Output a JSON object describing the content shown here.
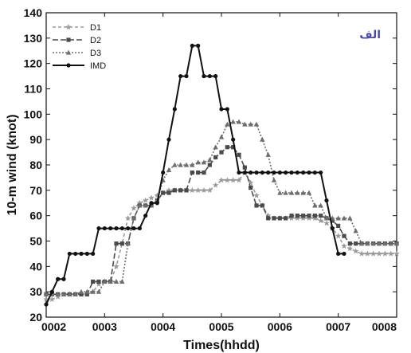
{
  "chart_data": {
    "type": "line",
    "title": "",
    "xlabel": "Times(hhdd)",
    "ylabel": "10-m wind (knot)",
    "panel_label": "الف",
    "xlim": [
      0,
      60
    ],
    "ylim": [
      20,
      140
    ],
    "x_ticks": [
      {
        "pos": 0,
        "label": "0002"
      },
      {
        "pos": 10,
        "label": "0003"
      },
      {
        "pos": 20,
        "label": "0004"
      },
      {
        "pos": 30,
        "label": "0005"
      },
      {
        "pos": 40,
        "label": "0006"
      },
      {
        "pos": 50,
        "label": "0007"
      },
      {
        "pos": 60,
        "label": "0008"
      }
    ],
    "y_ticks": [
      20,
      30,
      40,
      50,
      60,
      70,
      80,
      90,
      100,
      110,
      120,
      130,
      140
    ],
    "grid": false,
    "legend_position": "top-left",
    "series": [
      {
        "name": "D1",
        "color": "#9a9a9a",
        "dash": "4,3",
        "marker": "star",
        "x": [
          0,
          1,
          2,
          3,
          4,
          5,
          6,
          7,
          8,
          9,
          10,
          11,
          12,
          13,
          14,
          15,
          16,
          17,
          18,
          19,
          20,
          21,
          22,
          23,
          24,
          25,
          26,
          27,
          28,
          29,
          30,
          31,
          32,
          33,
          34,
          35,
          36,
          37,
          38,
          39,
          40,
          41,
          42,
          43,
          44,
          45,
          46,
          47,
          48,
          49,
          50,
          51,
          52,
          53,
          54,
          55,
          56,
          57,
          58,
          59,
          60
        ],
        "values": [
          27,
          27,
          28,
          29,
          29,
          29,
          29,
          29,
          30,
          33,
          34,
          34,
          40,
          49,
          59,
          63,
          65,
          66,
          67,
          68,
          69,
          70,
          70,
          70,
          70,
          70,
          70,
          70,
          70,
          72,
          74,
          74,
          74,
          74,
          77,
          73,
          68,
          64,
          60,
          59,
          59,
          59,
          59,
          59,
          59,
          59,
          59,
          58,
          57,
          55,
          52,
          48,
          47,
          46,
          45,
          45,
          45,
          45,
          45,
          45,
          45
        ]
      },
      {
        "name": "D2",
        "color": "#4a4a4a",
        "dash": "7,3",
        "marker": "square",
        "x": [
          0,
          1,
          2,
          3,
          4,
          5,
          6,
          7,
          8,
          9,
          10,
          11,
          12,
          13,
          14,
          15,
          16,
          17,
          18,
          19,
          20,
          21,
          22,
          23,
          24,
          25,
          26,
          27,
          28,
          29,
          30,
          31,
          32,
          33,
          34,
          35,
          36,
          37,
          38,
          39,
          40,
          41,
          42,
          43,
          44,
          45,
          46,
          47,
          48,
          49,
          50,
          51,
          52,
          53,
          54,
          55,
          56,
          57,
          58,
          59,
          60
        ],
        "values": [
          29,
          29,
          29,
          29,
          29,
          29,
          29,
          29,
          34,
          34,
          34,
          34,
          49,
          49,
          49,
          59,
          64,
          64,
          64,
          66,
          69,
          69,
          70,
          70,
          70,
          77,
          77,
          77,
          80,
          83,
          85,
          87,
          87,
          84,
          79,
          71,
          64,
          64,
          59,
          59,
          59,
          59,
          60,
          60,
          60,
          60,
          60,
          60,
          59,
          58,
          56,
          52,
          49,
          49,
          49,
          49,
          49,
          49,
          49,
          49,
          49
        ]
      },
      {
        "name": "D3",
        "color": "#6e6e6e",
        "dash": "2,2",
        "marker": "triangle",
        "x": [
          0,
          1,
          2,
          3,
          4,
          5,
          6,
          7,
          8,
          9,
          10,
          11,
          12,
          13,
          14,
          15,
          16,
          17,
          18,
          19,
          20,
          21,
          22,
          23,
          24,
          25,
          26,
          27,
          28,
          29,
          30,
          31,
          32,
          33,
          34,
          35,
          36,
          37,
          38,
          39,
          40,
          41,
          42,
          43,
          44,
          45,
          46,
          47,
          48,
          49,
          50,
          51,
          52,
          53,
          54,
          55,
          56,
          57,
          58,
          59,
          60
        ],
        "values": [
          29,
          29,
          29,
          29,
          29,
          29,
          30,
          30,
          30,
          30,
          34,
          34,
          34,
          34,
          49,
          59,
          64,
          64,
          64,
          66,
          74,
          78,
          80,
          80,
          80,
          80,
          81,
          81,
          82,
          87,
          91,
          96,
          97,
          97,
          96,
          96,
          96,
          90,
          84,
          74,
          69,
          69,
          69,
          69,
          69,
          69,
          64,
          64,
          59,
          59,
          59,
          59,
          59,
          54,
          49,
          49,
          49,
          49,
          49,
          49,
          49
        ]
      },
      {
        "name": "IMD",
        "color": "#111111",
        "dash": "",
        "marker": "circle",
        "x": [
          0,
          1,
          2,
          3,
          4,
          5,
          6,
          7,
          8,
          9,
          10,
          11,
          12,
          13,
          14,
          15,
          16,
          17,
          18,
          19,
          20,
          21,
          22,
          23,
          24,
          25,
          26,
          27,
          28,
          29,
          30,
          31,
          32,
          33,
          34,
          35,
          36,
          37,
          38,
          39,
          40,
          41,
          42,
          43,
          44,
          45,
          46,
          47,
          48,
          49,
          50,
          51
        ],
        "values": [
          25,
          30,
          35,
          35,
          45,
          45,
          45,
          45,
          45,
          55,
          55,
          55,
          55,
          55,
          55,
          55,
          55,
          60,
          65,
          65,
          77,
          90,
          102,
          115,
          115,
          127,
          127,
          115,
          115,
          115,
          102,
          102,
          90,
          77,
          77,
          77,
          77,
          77,
          77,
          77,
          77,
          77,
          77,
          77,
          77,
          77,
          77,
          77,
          66,
          55,
          45,
          45
        ]
      }
    ]
  }
}
